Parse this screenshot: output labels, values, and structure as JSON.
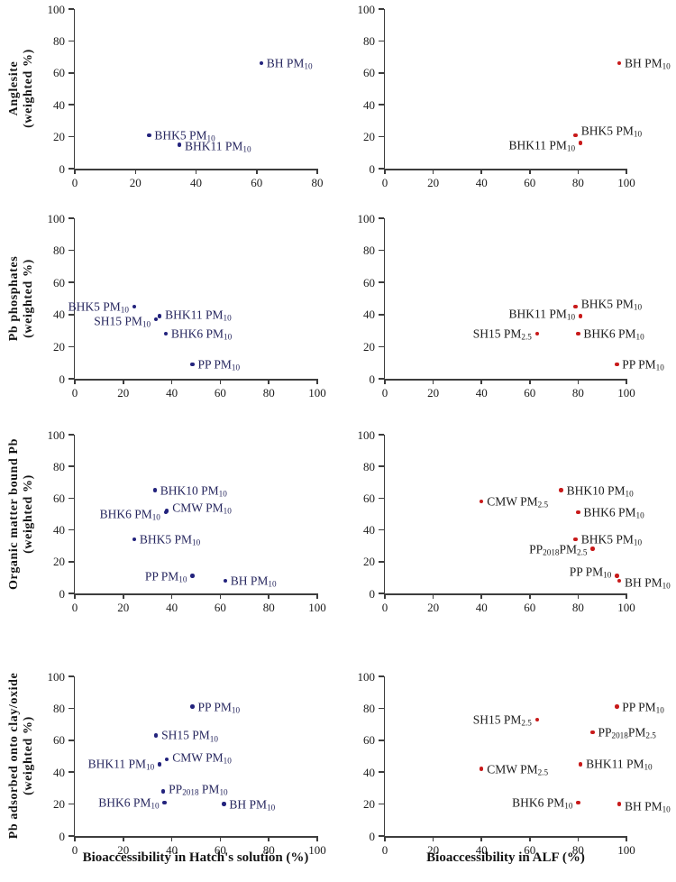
{
  "figure": {
    "background": "#ffffff",
    "axis_color": "#3d3d3d",
    "tick_text_color": "#1c1c1c",
    "hatch_dot_color": "#23237d",
    "hatch_label_color": "#26265e",
    "alf_dot_color": "#c81a1a",
    "alf_label_color": "#1a1a1a"
  },
  "chart_data": [
    {
      "type": "scatter",
      "panel": "anglesite-hatchs-solution",
      "ylabel": [
        "Anglesite",
        "(weighted %)"
      ],
      "xlabel": "Bioaccessibility in Hatch's solution (%)",
      "xlim": [
        0,
        80
      ],
      "ylim": [
        0,
        100
      ],
      "xticks": [
        0,
        20,
        40,
        60,
        80
      ],
      "yticks": [
        0,
        20,
        40,
        60,
        80,
        100
      ],
      "grid": false,
      "legend": "none",
      "dot_color": "#23237d",
      "label_color": "#26265e",
      "points": [
        {
          "label": "BH PM_{10}",
          "x": 61.5,
          "y": 66,
          "side": "right"
        },
        {
          "label": "BHK5 PM_{10}",
          "x": 24.5,
          "y": 21,
          "side": "right"
        },
        {
          "label": "BHK11 PM_{10}",
          "x": 34.5,
          "y": 15,
          "side": "right",
          "dy": 2
        }
      ]
    },
    {
      "type": "scatter",
      "panel": "anglesite-alf",
      "ylabel": [
        "Anglesite",
        "(weighted %)"
      ],
      "xlabel": "Bioaccessibility in ALF (%)",
      "xlim": [
        0,
        100
      ],
      "ylim": [
        0,
        100
      ],
      "xticks": [
        0,
        20,
        40,
        60,
        80,
        100
      ],
      "yticks": [
        0,
        20,
        40,
        60,
        80,
        100
      ],
      "grid": false,
      "legend": "none",
      "dot_color": "#c81a1a",
      "label_color": "#1a1a1a",
      "points": [
        {
          "label": "BH PM_{10}",
          "x": 97,
          "y": 66,
          "side": "right"
        },
        {
          "label": "BHK5 PM_{10}",
          "x": 79,
          "y": 21,
          "side": "right",
          "dy": -5
        },
        {
          "label": "BHK11 PM_{10}",
          "x": 81,
          "y": 16,
          "side": "left",
          "dy": 2
        }
      ]
    },
    {
      "type": "scatter",
      "panel": "pb-phosphates-hatchs-solution",
      "ylabel": [
        "Pb phosphates",
        "(weighted %)"
      ],
      "xlabel": "Bioaccessibility in Hatch's solution (%)",
      "xlim": [
        0,
        100
      ],
      "ylim": [
        0,
        100
      ],
      "xticks": [
        0,
        20,
        40,
        60,
        80,
        100
      ],
      "yticks": [
        0,
        20,
        40,
        60,
        80,
        100
      ],
      "grid": false,
      "legend": "none",
      "dot_color": "#23237d",
      "label_color": "#26265e",
      "points": [
        {
          "label": "BHK5 PM_{10}",
          "x": 24.5,
          "y": 45,
          "side": "left"
        },
        {
          "label": "BHK11 PM_{10}",
          "x": 35,
          "y": 39,
          "side": "right",
          "dy": -2
        },
        {
          "label": "SH15 PM_{10}",
          "x": 33.5,
          "y": 37,
          "side": "left",
          "dy": 2
        },
        {
          "label": "BHK6 PM_{10}",
          "x": 37.5,
          "y": 28,
          "side": "right"
        },
        {
          "label": "PP PM_{10}",
          "x": 48.5,
          "y": 9,
          "side": "right"
        }
      ]
    },
    {
      "type": "scatter",
      "panel": "pb-phosphates-alf",
      "ylabel": [
        "Pb phosphates",
        "(weighted %)"
      ],
      "xlabel": "Bioaccessibility in ALF (%)",
      "xlim": [
        0,
        100
      ],
      "ylim": [
        0,
        100
      ],
      "xticks": [
        0,
        20,
        40,
        60,
        80,
        100
      ],
      "yticks": [
        0,
        20,
        40,
        60,
        80,
        100
      ],
      "grid": false,
      "legend": "none",
      "dot_color": "#c81a1a",
      "label_color": "#1a1a1a",
      "points": [
        {
          "label": "BHK5 PM_{10}",
          "x": 79,
          "y": 45,
          "side": "right",
          "dy": -3
        },
        {
          "label": "BHK11 PM_{10}",
          "x": 81,
          "y": 39,
          "side": "left",
          "dy": -3
        },
        {
          "label": "SH15 PM_{2.5}",
          "x": 63,
          "y": 28,
          "side": "left"
        },
        {
          "label": "BHK6 PM_{10}",
          "x": 80,
          "y": 28,
          "side": "right"
        },
        {
          "label": "PP PM_{10}",
          "x": 96,
          "y": 9,
          "side": "right"
        }
      ]
    },
    {
      "type": "scatter",
      "panel": "organic-matter-bound-pb-hatchs-solution",
      "ylabel": [
        "Organic matter bound Pb",
        "(weighted %)"
      ],
      "xlabel": "Bioaccessibility in Hatch's solution (%)",
      "xlim": [
        0,
        100
      ],
      "ylim": [
        0,
        100
      ],
      "xticks": [
        0,
        20,
        40,
        60,
        80,
        100
      ],
      "yticks": [
        0,
        20,
        40,
        60,
        80,
        100
      ],
      "grid": false,
      "legend": "none",
      "dot_color": "#23237d",
      "label_color": "#26265e",
      "points": [
        {
          "label": "BHK10 PM_{10}",
          "x": 33,
          "y": 65,
          "side": "right"
        },
        {
          "label": "CMW PM_{10}",
          "x": 38,
          "y": 52,
          "side": "right",
          "dy": -3
        },
        {
          "label": "BHK6 PM_{10}",
          "x": 37.5,
          "y": 51,
          "side": "left",
          "dy": 2
        },
        {
          "label": "BHK5 PM_{10}",
          "x": 24.5,
          "y": 34,
          "side": "right"
        },
        {
          "label": "PP PM_{10}",
          "x": 48.5,
          "y": 11,
          "side": "left"
        },
        {
          "label": "BH PM_{10}",
          "x": 62,
          "y": 8,
          "side": "right"
        }
      ]
    },
    {
      "type": "scatter",
      "panel": "organic-matter-bound-pb-alf",
      "ylabel": [
        "Organic matter bound Pb",
        "(weighted %)"
      ],
      "xlabel": "Bioaccessibility in ALF (%)",
      "xlim": [
        0,
        100
      ],
      "ylim": [
        0,
        100
      ],
      "xticks": [
        0,
        20,
        40,
        60,
        80,
        100
      ],
      "yticks": [
        0,
        20,
        40,
        60,
        80,
        100
      ],
      "grid": false,
      "legend": "none",
      "dot_color": "#c81a1a",
      "label_color": "#1a1a1a",
      "points": [
        {
          "label": "BHK10 PM_{10}",
          "x": 73,
          "y": 65,
          "side": "right"
        },
        {
          "label": "CMW PM_{2.5}",
          "x": 40,
          "y": 58,
          "side": "right"
        },
        {
          "label": "BHK6 PM_{10}",
          "x": 80,
          "y": 51,
          "side": "right"
        },
        {
          "label": "BHK5 PM_{10}",
          "x": 79,
          "y": 34,
          "side": "right"
        },
        {
          "label": "PP_{2018}PM_{2.5}",
          "x": 86,
          "y": 28,
          "side": "left"
        },
        {
          "label": "PP PM_{10}",
          "x": 96,
          "y": 11,
          "side": "left",
          "dy": -5
        },
        {
          "label": "BH PM_{10}",
          "x": 97,
          "y": 8,
          "side": "right",
          "dy": 2
        }
      ]
    },
    {
      "type": "scatter",
      "panel": "pb-adsorbed-clay-oxide-hatchs-solution",
      "ylabel": [
        "Pb adsorbed onto clay/oxide",
        "(weighted %)"
      ],
      "xlabel": "Bioaccessibility in Hatch's solution (%)",
      "xlim": [
        0,
        100
      ],
      "ylim": [
        0,
        100
      ],
      "xticks": [
        0,
        20,
        40,
        60,
        80,
        100
      ],
      "yticks": [
        0,
        20,
        40,
        60,
        80,
        100
      ],
      "grid": false,
      "legend": "none",
      "dot_color": "#23237d",
      "label_color": "#26265e",
      "points": [
        {
          "label": "PP PM_{10}",
          "x": 48.5,
          "y": 81,
          "side": "right"
        },
        {
          "label": "SH15 PM_{10}",
          "x": 33.5,
          "y": 63,
          "side": "right"
        },
        {
          "label": "CMW PM_{10}",
          "x": 38,
          "y": 48,
          "side": "right",
          "dy": -2
        },
        {
          "label": "BHK11 PM_{10}",
          "x": 35,
          "y": 45,
          "side": "left"
        },
        {
          "label": "PP_{2018} PM_{10}",
          "x": 36.5,
          "y": 28,
          "side": "right",
          "dy": -2
        },
        {
          "label": "BHK6 PM_{10}",
          "x": 37,
          "y": 21,
          "side": "left"
        },
        {
          "label": "BH PM_{10}",
          "x": 61.5,
          "y": 20,
          "side": "right"
        }
      ]
    },
    {
      "type": "scatter",
      "panel": "pb-adsorbed-clay-oxide-alf",
      "ylabel": [
        "Pb adsorbed onto clay/oxide",
        "(weighted %)"
      ],
      "xlabel": "Bioaccessibility in ALF (%)",
      "xlim": [
        0,
        100
      ],
      "ylim": [
        0,
        100
      ],
      "xticks": [
        0,
        20,
        40,
        60,
        80,
        100
      ],
      "yticks": [
        0,
        20,
        40,
        60,
        80,
        100
      ],
      "grid": false,
      "legend": "none",
      "dot_color": "#c81a1a",
      "label_color": "#1a1a1a",
      "points": [
        {
          "label": "PP PM_{10}",
          "x": 96,
          "y": 81,
          "side": "right"
        },
        {
          "label": "SH15 PM_{2.5}",
          "x": 63,
          "y": 73,
          "side": "left"
        },
        {
          "label": "PP_{2018}PM_{2.5}",
          "x": 86,
          "y": 65,
          "side": "right"
        },
        {
          "label": "BHK11 PM_{10}",
          "x": 81,
          "y": 45,
          "side": "right"
        },
        {
          "label": "CMW PM_{2.5}",
          "x": 40,
          "y": 42,
          "side": "right"
        },
        {
          "label": "BHK6 PM_{10}",
          "x": 80,
          "y": 21,
          "side": "left"
        },
        {
          "label": "BH PM_{10}",
          "x": 97,
          "y": 20,
          "side": "right",
          "dy": 2
        }
      ]
    }
  ]
}
